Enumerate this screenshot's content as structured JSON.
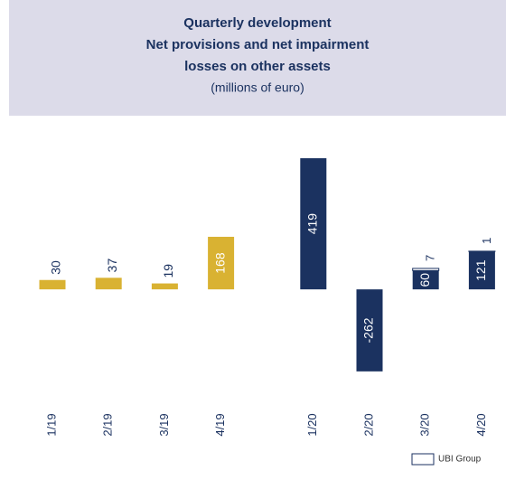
{
  "chart_data": {
    "type": "bar",
    "title": [
      "Quarterly development",
      "Net provisions and net impairment",
      "losses on other assets"
    ],
    "subtitle": "(millions of euro)",
    "categories": [
      "1/19",
      "2/19",
      "3/19",
      "4/19",
      "1/20",
      "2/20",
      "3/20",
      "4/20"
    ],
    "series": [
      {
        "colors": [
          "#d9b232",
          "#d9b232",
          "#d9b232",
          "#d9b232",
          "#1b3260",
          "#1b3260",
          "#1b3260",
          "#1b3260"
        ],
        "values": [
          30,
          37,
          19,
          168,
          419,
          -262,
          60,
          121
        ]
      },
      {
        "name": "UBI Group",
        "color": "#ffffff",
        "values": [
          null,
          null,
          null,
          null,
          null,
          null,
          7,
          1
        ]
      }
    ],
    "ylim": [
      -300,
      500
    ],
    "grid": false,
    "legend": "bottom-right"
  }
}
